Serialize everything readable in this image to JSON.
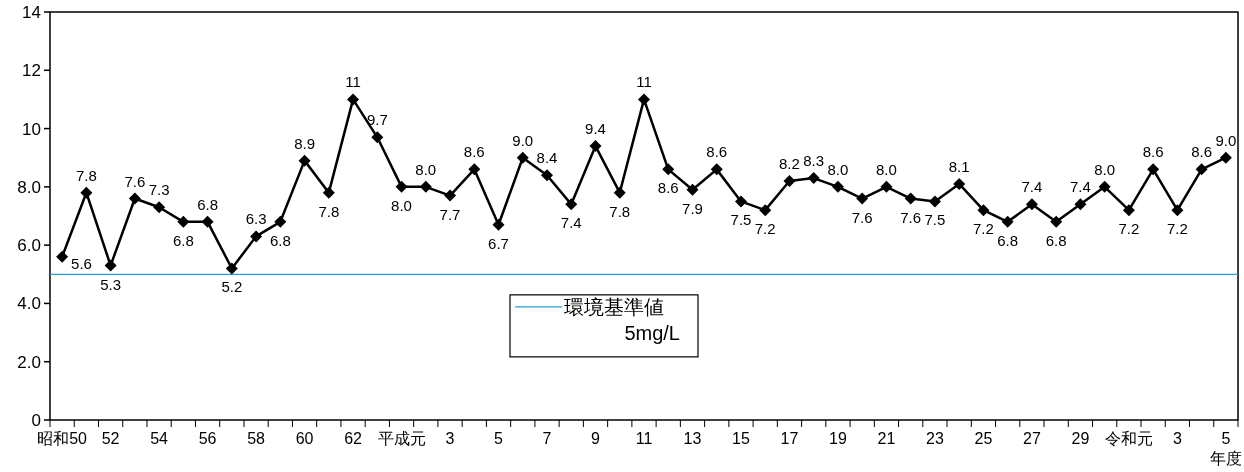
{
  "chart_data": {
    "type": "line",
    "xlabel": "年度",
    "categories": [
      "昭和50",
      null,
      "52",
      null,
      "54",
      null,
      "56",
      null,
      "58",
      null,
      "60",
      null,
      "62",
      null,
      "平成元",
      null,
      "3",
      null,
      "5",
      null,
      "7",
      null,
      "9",
      null,
      "11",
      null,
      "13",
      null,
      "15",
      null,
      "17",
      null,
      "19",
      null,
      "21",
      null,
      "23",
      null,
      "25",
      null,
      "27",
      null,
      "29",
      null,
      "令和元",
      null,
      "3",
      null,
      "5"
    ],
    "series": [
      {
        "color": "#000000",
        "values": [
          5.6,
          7.8,
          5.3,
          7.6,
          7.3,
          6.8,
          6.8,
          5.2,
          6.3,
          6.8,
          8.9,
          7.8,
          11,
          9.7,
          8.0,
          8.0,
          7.7,
          8.6,
          6.7,
          9.0,
          8.4,
          7.4,
          9.4,
          7.8,
          11,
          8.6,
          7.9,
          8.6,
          7.5,
          7.2,
          8.2,
          8.3,
          8.0,
          7.6,
          8.0,
          7.6,
          7.5,
          8.1,
          7.2,
          6.8,
          7.4,
          6.8,
          7.4,
          8.0,
          7.2,
          8.6,
          7.2,
          8.6,
          9.0
        ],
        "value_labels": [
          "5.6",
          "7.8",
          "5.3",
          "7.6",
          "7.3",
          "6.8",
          "6.8",
          "5.2",
          "6.3",
          "6.8",
          "8.9",
          "7.8",
          "11",
          "9.7",
          "8.0",
          "8.0",
          "7.7",
          "8.6",
          "6.7",
          "9.0",
          "8.4",
          "7.4",
          "9.4",
          "7.8",
          "11",
          "8.6",
          "7.9",
          "8.6",
          "7.5",
          "7.2",
          "8.2",
          "8.3",
          "8.0",
          "7.6",
          "8.0",
          "7.6",
          "7.5",
          "8.1",
          "7.2",
          "6.8",
          "7.4",
          "6.8",
          "7.4",
          "8.0",
          "7.2",
          "8.6",
          "7.2",
          "8.6",
          "9.0"
        ]
      }
    ],
    "ylim": [
      0,
      14
    ],
    "yticks": [
      0,
      {
        "value": 2,
        "label": "2.0"
      },
      {
        "value": 4,
        "label": "4.0"
      },
      {
        "value": 6,
        "label": "6.0"
      },
      {
        "value": 8,
        "label": "8.0"
      },
      10,
      12,
      14
    ],
    "ref_lines": [
      {
        "axis": "y",
        "value": 5,
        "label": "環境基準値\n5mg/L",
        "color": "#29a0da",
        "line_style": "solid"
      }
    ],
    "legend": "bottom",
    "grid": false,
    "marker": "diamond",
    "line_style": "solid"
  }
}
